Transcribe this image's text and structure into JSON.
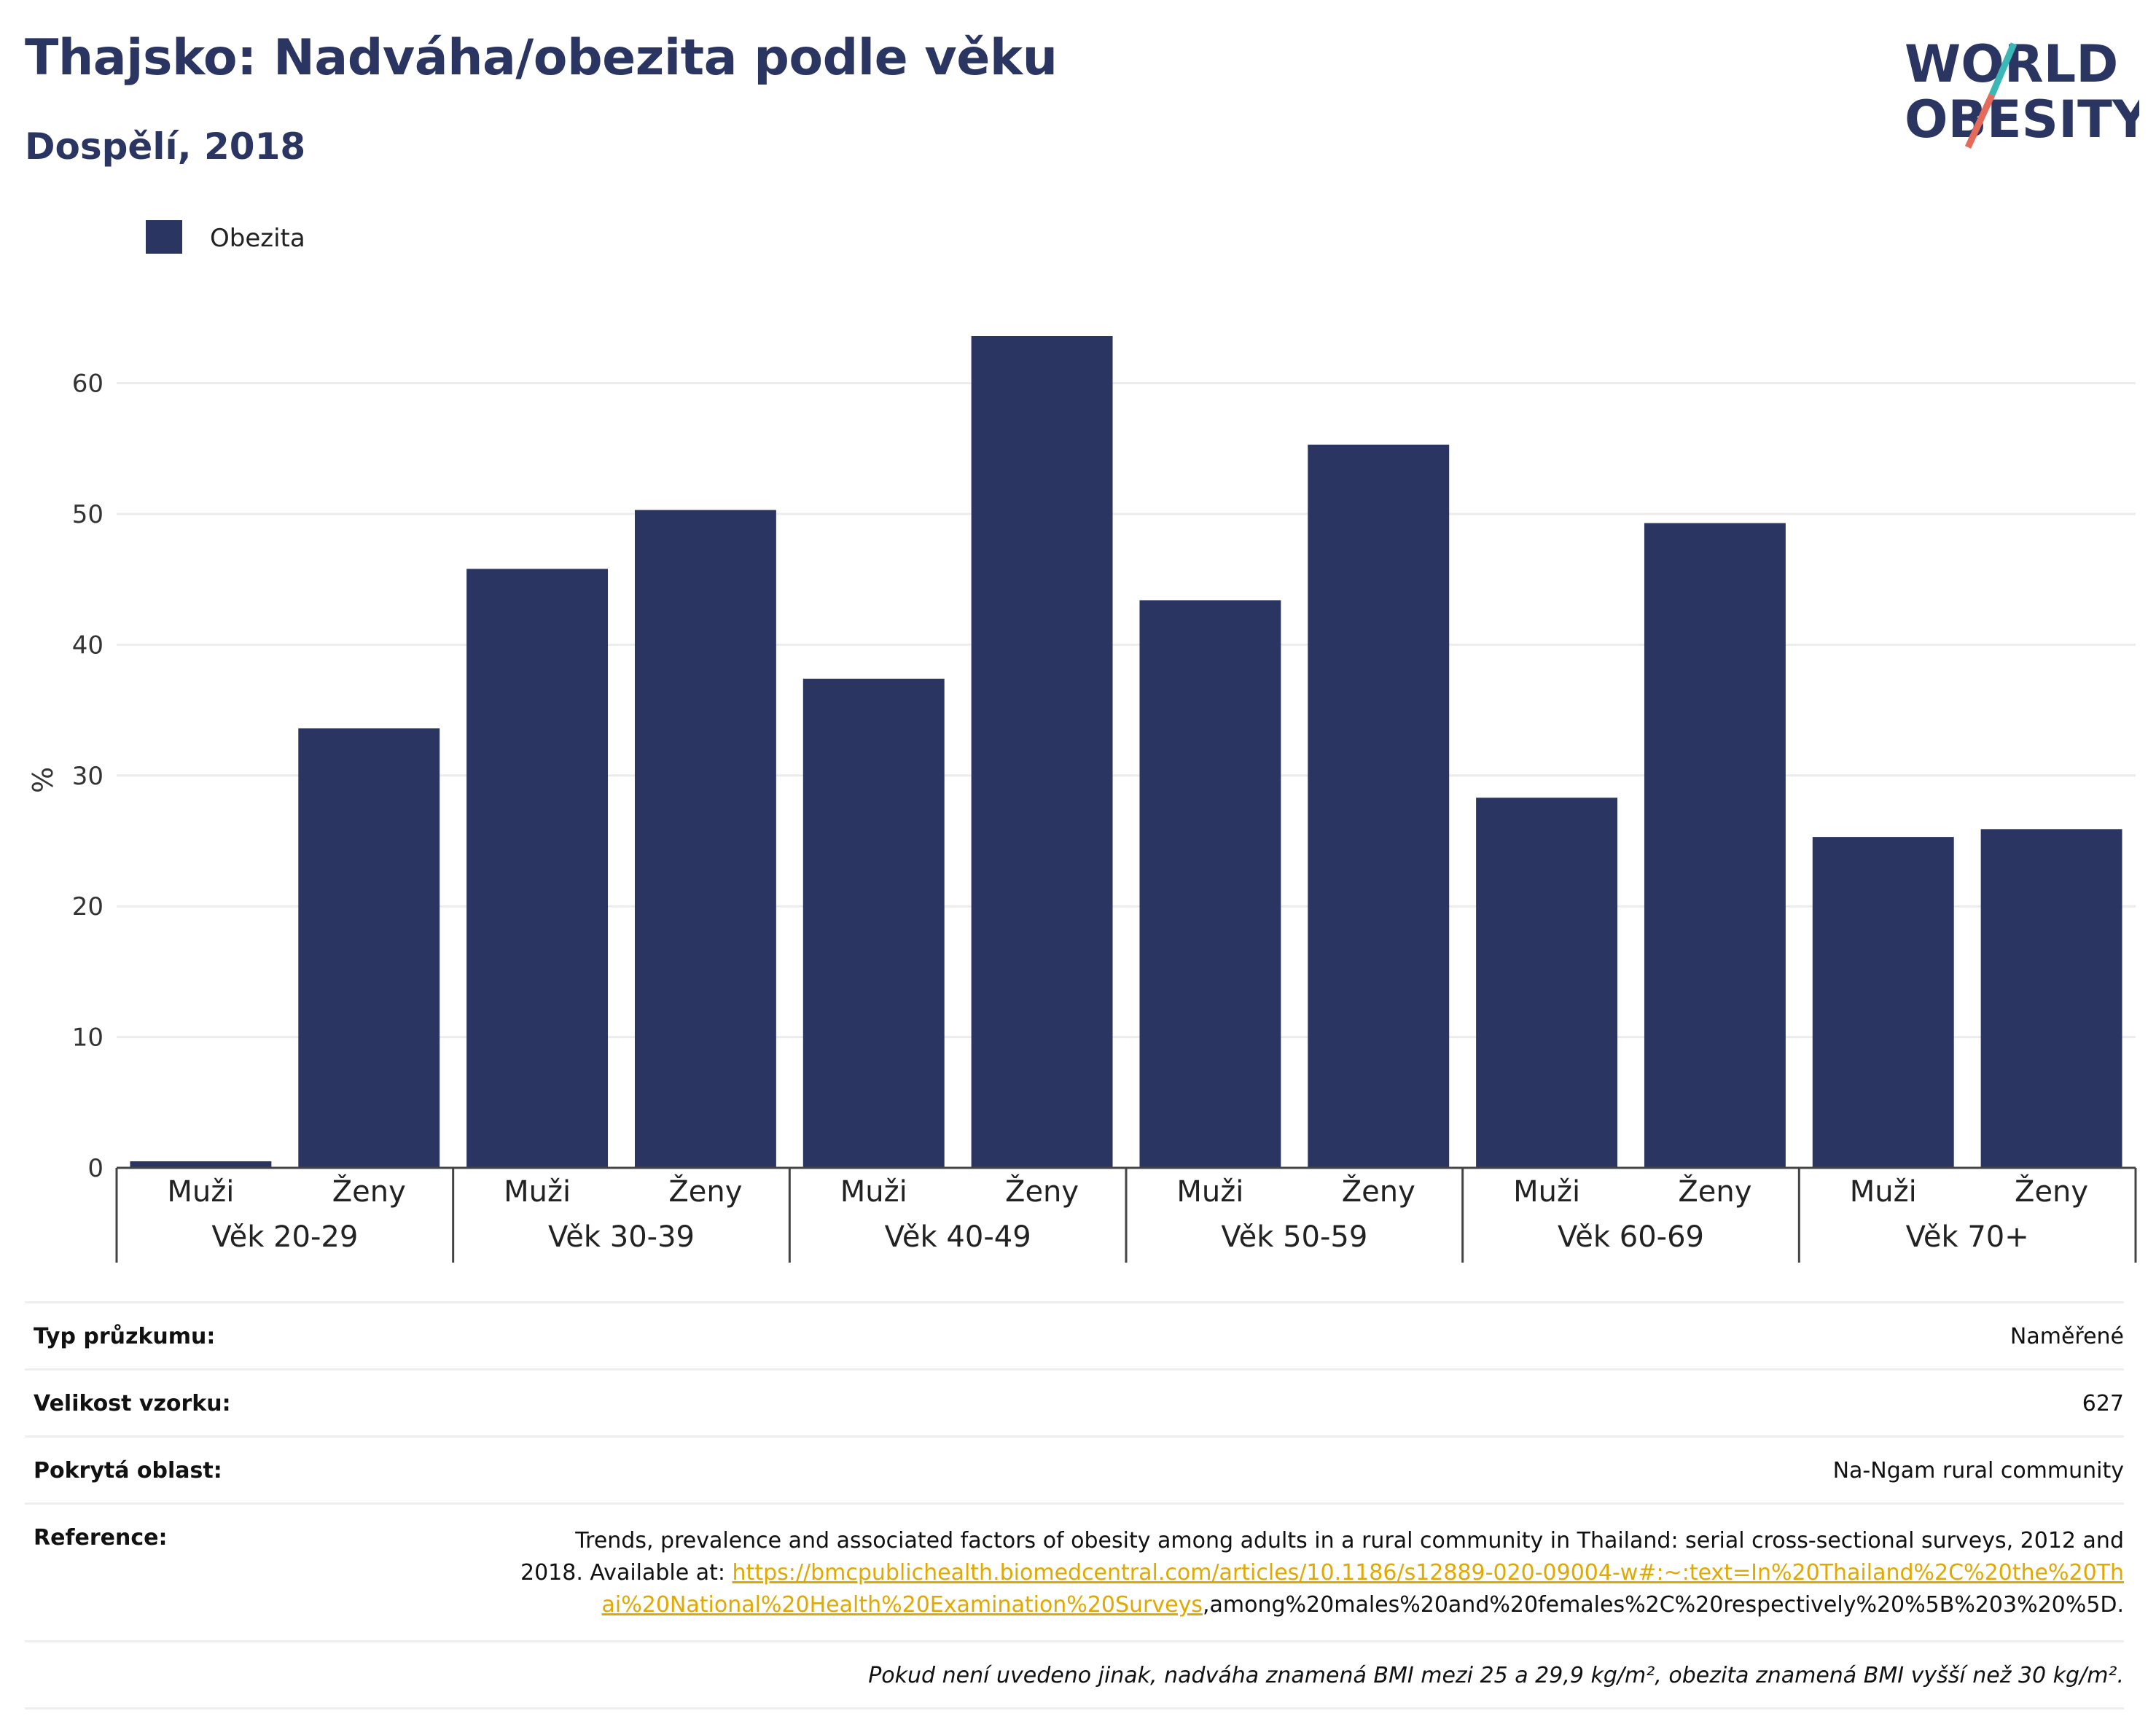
{
  "title": "Thajsko: Nadváha/obezita podle věku",
  "subtitle": "Dospělí, 2018",
  "logo": {
    "line1": "WORLD",
    "line2": "OBESITY",
    "accent_colors": [
      "#3bb8b5",
      "#e56a5a"
    ]
  },
  "chart_data": {
    "type": "bar",
    "ylabel": "%",
    "ylim": [
      0,
      67
    ],
    "yticks": [
      0,
      10,
      20,
      30,
      40,
      50,
      60
    ],
    "grid": true,
    "legend": {
      "position": "top-left",
      "entries": [
        "Obezita"
      ]
    },
    "bar_color": "#2b3561",
    "groups": [
      "Věk 20-29",
      "Věk 30-39",
      "Věk 40-49",
      "Věk 50-59",
      "Věk 60-69",
      "Věk 70+"
    ],
    "subcategories": [
      "Muži",
      "Ženy"
    ],
    "series": [
      {
        "name": "Obezita",
        "values": [
          [
            0.5,
            33.6
          ],
          [
            45.8,
            50.3
          ],
          [
            37.4,
            63.6
          ],
          [
            43.4,
            55.3
          ],
          [
            28.3,
            49.3
          ],
          [
            25.3,
            25.9
          ]
        ]
      }
    ]
  },
  "info": {
    "survey_type": {
      "label": "Typ průzkumu:",
      "value": "Naměřené"
    },
    "sample_size": {
      "label": "Velikost vzorku:",
      "value": "627"
    },
    "area": {
      "label": "Pokrytá oblast:",
      "value": "Na-Ngam rural community"
    },
    "reference": {
      "label": "Reference:",
      "text": "Trends, prevalence and associated factors of obesity among adults in a rural community in Thailand: serial cross-sectional surveys, 2012 and 2018. Available at: ",
      "link": "https://bmcpublichealth.biomedcentral.com/articles/10.1186/s12889-020-09004-w#:~:text=In%20Thailand%2C%20the%20Thai%20National%20Health%20Examination%20Surveys",
      "tail": ",among%20males%20and%20females%2C%20respectively%20%5B%203%20%5D."
    },
    "note": "Pokud není uvedeno jinak, nadváha znamená BMI mezi 25 a 29,9 kg/m², obezita znamená BMI vyšší než 30 kg/m²."
  }
}
